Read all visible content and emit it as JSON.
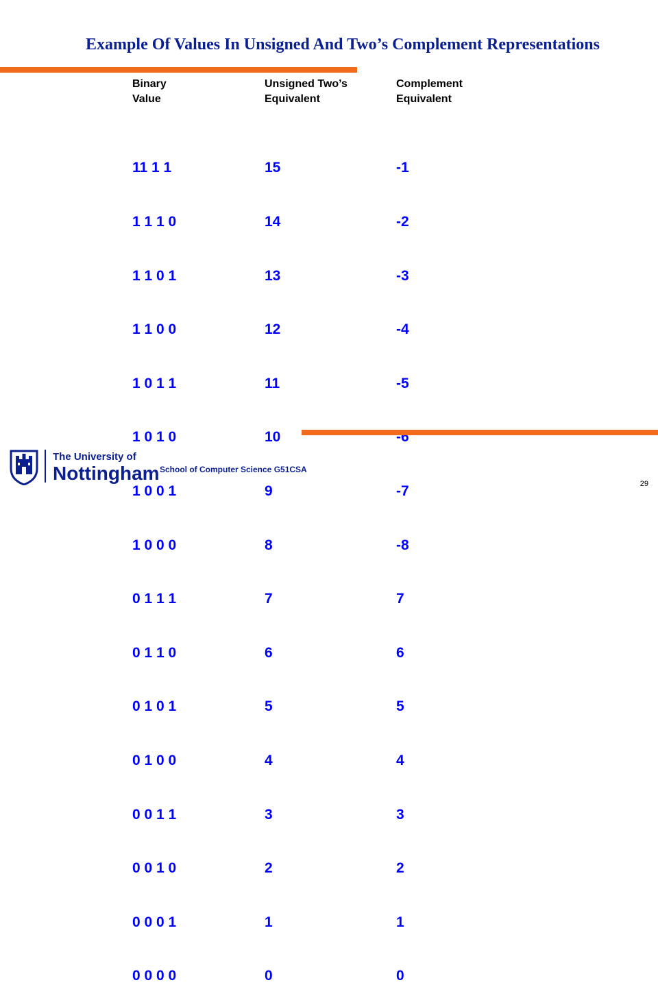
{
  "slide": {
    "title": "Example Of Values In Unsigned And Two’s Complement Representations"
  },
  "headers": {
    "binary_line1": "Binary",
    "binary_line2": "Value",
    "unsigned_line1": "Unsigned  Two’s",
    "unsigned_line2": "Equivalent",
    "twos_line1": "Complement",
    "twos_line2": "Equivalent"
  },
  "table": {
    "binary": [
      "11 1 1",
      "1 1 1 0",
      "1 1 0 1",
      "1 1 0 0",
      "1 0 1 1",
      "1 0 1 0",
      "1 0 0 1",
      "1 0 0 0",
      "0 1 1 1",
      "0 1 1 0",
      "0 1 0 1",
      "0 1 0 0",
      "0 0 1 1",
      "0 0 1 0",
      "0 0 0 1",
      "0 0 0 0"
    ],
    "unsigned": [
      "15",
      "14",
      "13",
      "12",
      "11",
      "10",
      "9",
      "8",
      "7",
      "6",
      "5",
      "4",
      "3",
      "2",
      "1",
      "0"
    ],
    "twos": [
      "-1",
      "-2",
      "-3",
      "-4",
      "-5",
      "-6",
      "-7",
      "-8",
      "7",
      "6",
      "5",
      "4",
      "3",
      "2",
      "1",
      "0"
    ]
  },
  "footer": {
    "university_line1": "The University of",
    "university_line2": "Nottingham",
    "course": "School of Computer  Science G51CSA",
    "page_number": "29"
  },
  "colors": {
    "title": "#0b1f8f",
    "values": "#0000ff",
    "accent_bar": "#f26a1b"
  },
  "icons": {
    "logo": "university-crest-icon"
  }
}
